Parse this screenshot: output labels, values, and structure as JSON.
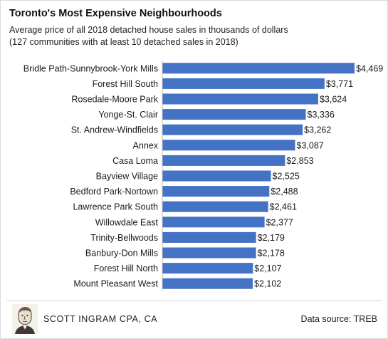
{
  "title": "Toronto's Most Expensive Neighbourhoods",
  "subtitle_line1": "Average price of all 2018  detached house sales in thousands of dollars",
  "subtitle_line2": "(127 communities with at least 10 detached sales in 2018)",
  "footer": {
    "brand": "SCOTT INGRAM CPA, CA",
    "source": "Data source: TREB",
    "avatar_icon": "portrait-sketch-icon"
  },
  "colors": {
    "bar": "#4472C4",
    "text": "#1a1a1a"
  },
  "chart_data": {
    "type": "bar",
    "orientation": "horizontal",
    "categories": [
      "Bridle Path-Sunnybrook-York Mills",
      "Forest Hill South",
      "Rosedale-Moore Park",
      "Yonge-St. Clair",
      "St. Andrew-Windfields",
      "Annex",
      "Casa Loma",
      "Bayview Village",
      "Bedford Park-Nortown",
      "Lawrence Park South",
      "Willowdale East",
      "Trinity-Bellwoods",
      "Banbury-Don Mills",
      "Forest Hill North",
      "Mount Pleasant West"
    ],
    "values": [
      4469,
      3771,
      3624,
      3336,
      3262,
      3087,
      2853,
      2525,
      2488,
      2461,
      2377,
      2179,
      2178,
      2107,
      2102
    ],
    "labels": [
      "$4,469",
      "$3,771",
      "$3,624",
      "$3,336",
      "$3,262",
      "$3,087",
      "$2,853",
      "$2,525",
      "$2,488",
      "$2,461",
      "$2,377",
      "$2,179",
      "$2,178",
      "$2,107",
      "$2,102"
    ],
    "xlim": [
      0,
      4469
    ],
    "grid": false,
    "legend": "none"
  }
}
